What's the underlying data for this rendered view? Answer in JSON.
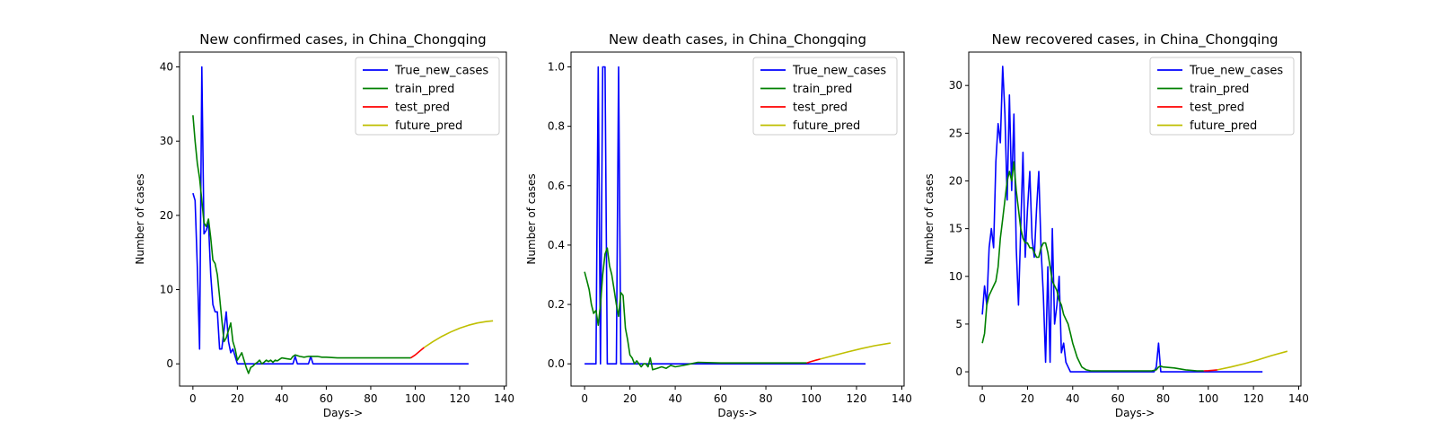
{
  "chart_data": [
    {
      "type": "line",
      "title": "New confirmed cases, in China_Chongqing",
      "xlabel": "Days->",
      "ylabel": "Number of cases",
      "xlim": [
        -6,
        141
      ],
      "ylim": [
        -3,
        42
      ],
      "xticks": [
        0,
        20,
        40,
        60,
        80,
        100,
        120,
        140
      ],
      "yticks": [
        0,
        10,
        20,
        30,
        40
      ],
      "legend_position": "top-right",
      "series": [
        {
          "name": "True_new_cases",
          "color": "#0000ff",
          "x": [
            0,
            1,
            2,
            3,
            4,
            5,
            6,
            7,
            8,
            9,
            10,
            11,
            12,
            13,
            14,
            15,
            16,
            17,
            18,
            19,
            20,
            22,
            25,
            30,
            35,
            40,
            45,
            46,
            47,
            48,
            50,
            52,
            53,
            54,
            55,
            60,
            70,
            80,
            90,
            100,
            110,
            120,
            124
          ],
          "y": [
            23,
            22,
            13,
            2,
            40,
            17.5,
            18,
            19,
            12,
            8,
            7,
            7,
            2,
            2,
            4.5,
            7,
            3,
            1.5,
            2,
            1,
            0,
            0,
            0,
            0,
            0,
            0,
            0,
            1,
            0,
            0,
            0,
            0,
            1,
            0,
            0,
            0,
            0,
            0,
            0,
            0,
            0,
            0,
            0
          ]
        },
        {
          "name": "train_pred",
          "color": "#008000",
          "x": [
            0,
            1,
            2,
            3,
            4,
            5,
            6,
            7,
            8,
            9,
            10,
            11,
            12,
            13,
            14,
            15,
            16,
            17,
            18,
            19,
            20,
            21,
            22,
            23,
            24,
            25,
            26,
            27,
            28,
            29,
            30,
            31,
            32,
            33,
            34,
            35,
            36,
            37,
            38,
            39,
            40,
            42,
            44,
            45,
            46,
            48,
            50,
            52,
            54,
            56,
            58,
            60,
            65,
            70,
            75,
            80,
            85,
            90,
            95,
            98
          ],
          "y": [
            33.5,
            30,
            27,
            25,
            22,
            19,
            18.5,
            19.5,
            17,
            14,
            13.5,
            12,
            9,
            6,
            3,
            3.5,
            4.5,
            5.5,
            3,
            2,
            0.5,
            1,
            1.5,
            0.5,
            -0.5,
            -1.3,
            -0.5,
            -0.3,
            0,
            0.2,
            0.5,
            0,
            0.2,
            0.5,
            0.3,
            0.5,
            0.2,
            0.5,
            0.4,
            0.6,
            0.8,
            0.7,
            0.6,
            1,
            1.2,
            1,
            0.9,
            1,
            1,
            1,
            0.9,
            0.9,
            0.8,
            0.8,
            0.8,
            0.8,
            0.8,
            0.8,
            0.8,
            0.8
          ]
        },
        {
          "name": "test_pred",
          "color": "#ff0000",
          "x": [
            98,
            100,
            102,
            104
          ],
          "y": [
            0.8,
            1.2,
            1.7,
            2.2
          ]
        },
        {
          "name": "future_pred",
          "color": "#bfbf00",
          "x": [
            104,
            108,
            112,
            116,
            120,
            124,
            128,
            132,
            135
          ],
          "y": [
            2.2,
            3,
            3.7,
            4.3,
            4.8,
            5.2,
            5.5,
            5.7,
            5.8
          ]
        }
      ]
    },
    {
      "type": "line",
      "title": "New death cases, in China_Chongqing",
      "xlabel": "Days->",
      "ylabel": "Number of cases",
      "xlim": [
        -6,
        141
      ],
      "ylim": [
        -0.075,
        1.05
      ],
      "xticks": [
        0,
        20,
        40,
        60,
        80,
        100,
        120,
        140
      ],
      "yticks": [
        0.0,
        0.2,
        0.4,
        0.6,
        0.8,
        1.0
      ],
      "legend_position": "top-right",
      "series": [
        {
          "name": "True_new_cases",
          "color": "#0000ff",
          "x": [
            0,
            1,
            2,
            3,
            4,
            5,
            6,
            7,
            8,
            9,
            10,
            11,
            12,
            13,
            14,
            15,
            16,
            17,
            18,
            20,
            30,
            40,
            60,
            80,
            100,
            124
          ],
          "y": [
            0,
            0,
            0,
            0,
            0,
            0,
            1,
            0,
            1,
            1,
            0,
            0,
            0,
            0,
            0,
            1,
            0,
            0,
            0,
            0,
            0,
            0,
            0,
            0,
            0,
            0
          ]
        },
        {
          "name": "train_pred",
          "color": "#008000",
          "x": [
            0,
            1,
            2,
            3,
            4,
            5,
            6,
            7,
            8,
            9,
            10,
            11,
            12,
            13,
            14,
            15,
            16,
            17,
            18,
            19,
            20,
            21,
            22,
            23,
            24,
            25,
            26,
            27,
            28,
            29,
            30,
            32,
            34,
            36,
            38,
            40,
            45,
            50,
            60,
            70,
            80,
            90,
            98
          ],
          "y": [
            0.31,
            0.28,
            0.25,
            0.2,
            0.17,
            0.18,
            0.13,
            0.2,
            0.3,
            0.37,
            0.39,
            0.33,
            0.3,
            0.25,
            0.2,
            0.16,
            0.24,
            0.23,
            0.12,
            0.08,
            0.03,
            0.02,
            0.0,
            0.01,
            0.0,
            -0.01,
            0.0,
            0.0,
            -0.01,
            0.02,
            -0.02,
            -0.015,
            -0.01,
            -0.015,
            -0.005,
            -0.01,
            -0.003,
            0.005,
            0.003,
            0.003,
            0.003,
            0.003,
            0.003
          ]
        },
        {
          "name": "test_pred",
          "color": "#ff0000",
          "x": [
            98,
            100,
            102,
            104
          ],
          "y": [
            0.003,
            0.008,
            0.012,
            0.016
          ]
        },
        {
          "name": "future_pred",
          "color": "#bfbf00",
          "x": [
            104,
            110,
            116,
            122,
            128,
            135
          ],
          "y": [
            0.016,
            0.028,
            0.04,
            0.051,
            0.061,
            0.07
          ]
        }
      ]
    },
    {
      "type": "line",
      "title": "New recovered cases, in China_Chongqing",
      "xlabel": "Days->",
      "ylabel": "Number of cases",
      "xlim": [
        -6,
        141
      ],
      "ylim": [
        -1.5,
        33.5
      ],
      "xticks": [
        0,
        20,
        40,
        60,
        80,
        100,
        120,
        140
      ],
      "yticks": [
        0,
        5,
        10,
        15,
        20,
        25,
        30
      ],
      "legend_position": "top-right",
      "series": [
        {
          "name": "True_new_cases",
          "color": "#0000ff",
          "x": [
            0,
            1,
            2,
            3,
            4,
            5,
            6,
            7,
            8,
            9,
            10,
            11,
            12,
            13,
            14,
            15,
            16,
            17,
            18,
            19,
            20,
            21,
            22,
            23,
            24,
            25,
            26,
            27,
            28,
            29,
            30,
            31,
            32,
            33,
            34,
            35,
            36,
            37,
            38,
            39,
            40,
            42,
            50,
            60,
            70,
            76,
            77,
            78,
            79,
            80,
            90,
            100,
            110,
            120,
            124
          ],
          "y": [
            6,
            9,
            7,
            13,
            15,
            13,
            22,
            26,
            24,
            32,
            27,
            18,
            29,
            19,
            27,
            13,
            7,
            15,
            23,
            12,
            17,
            21,
            14,
            12,
            17,
            21,
            13,
            8,
            1,
            11,
            1,
            15,
            5,
            7,
            10,
            2,
            3,
            1,
            0.5,
            0,
            0,
            0,
            0,
            0,
            0,
            0,
            0.5,
            3,
            0,
            0,
            0,
            0,
            0,
            0,
            0
          ]
        },
        {
          "name": "train_pred",
          "color": "#008000",
          "x": [
            0,
            1,
            2,
            3,
            4,
            5,
            6,
            7,
            8,
            9,
            10,
            11,
            12,
            13,
            14,
            15,
            16,
            17,
            18,
            19,
            20,
            21,
            22,
            23,
            24,
            25,
            26,
            27,
            28,
            29,
            30,
            31,
            32,
            33,
            34,
            35,
            36,
            37,
            38,
            39,
            40,
            42,
            44,
            46,
            48,
            50,
            55,
            60,
            65,
            70,
            75,
            77,
            78,
            79,
            80,
            85,
            90,
            95,
            98
          ],
          "y": [
            3,
            4,
            7,
            8,
            8.5,
            9,
            9.5,
            11,
            14,
            16,
            18,
            20,
            21,
            20,
            22,
            19,
            17,
            15,
            14,
            13.5,
            13.5,
            13,
            13,
            12.5,
            12,
            12,
            13,
            13.5,
            13.5,
            12.5,
            11,
            9.5,
            9,
            8.5,
            7.5,
            7,
            6,
            5.5,
            5,
            4,
            3,
            1.5,
            0.5,
            0.2,
            0.1,
            0.1,
            0.1,
            0.1,
            0.1,
            0.1,
            0.1,
            0.2,
            0.5,
            0.6,
            0.5,
            0.4,
            0.2,
            0.1,
            0.1
          ]
        },
        {
          "name": "test_pred",
          "color": "#ff0000",
          "x": [
            98,
            100,
            102,
            104
          ],
          "y": [
            0.1,
            0.12,
            0.16,
            0.2
          ]
        },
        {
          "name": "future_pred",
          "color": "#bfbf00",
          "x": [
            104,
            110,
            116,
            122,
            128,
            135
          ],
          "y": [
            0.2,
            0.5,
            0.85,
            1.25,
            1.7,
            2.15
          ]
        }
      ]
    }
  ]
}
